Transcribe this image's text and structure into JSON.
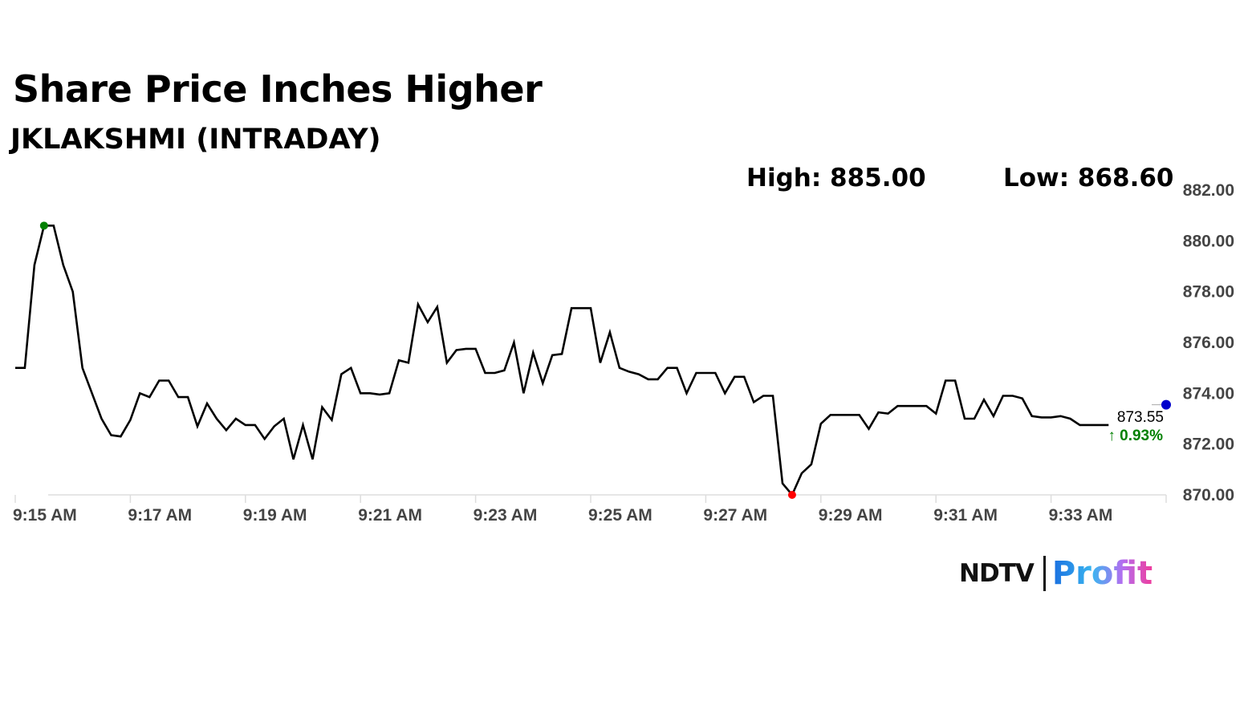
{
  "header": {
    "title": "Share Price Inches Higher",
    "subtitle": "JKLAKSHMI (INTRADAY)"
  },
  "stats": {
    "high": "High: 885.00",
    "low": "Low: 868.60"
  },
  "last": {
    "price": "873.55",
    "change": "↑ 0.93%",
    "value": 873.55,
    "time": "9:35:00"
  },
  "logo": {
    "ndtv": "NDTV",
    "profit": "Profit"
  },
  "colors": {
    "line": "#000000",
    "high_marker": "#008000",
    "low_marker": "#ff0000",
    "last_marker": "#0000cc",
    "change_up": "#008000",
    "axis_text": "#444444",
    "axis_line": "#dddddd"
  },
  "chart_data": {
    "type": "line",
    "title": "Share Price Inches Higher",
    "xlabel": "",
    "ylabel": "",
    "ylim": [
      870,
      882
    ],
    "xlim": [
      "9:15:00",
      "9:35:00"
    ],
    "y_ticks": [
      "870.00",
      "872.00",
      "874.00",
      "876.00",
      "878.00",
      "880.00",
      "882.00"
    ],
    "x_ticks": [
      "9:15 AM",
      "9:17 AM",
      "9:19 AM",
      "9:21 AM",
      "9:23 AM",
      "9:25 AM",
      "9:27 AM",
      "9:29 AM",
      "9:31 AM",
      "9:33 AM"
    ],
    "grid": false,
    "x": [
      "9:15:00",
      "9:15:10",
      "9:15:20",
      "9:15:30",
      "9:15:40",
      "9:15:50",
      "9:16:00",
      "9:16:10",
      "9:16:20",
      "9:16:30",
      "9:16:40",
      "9:16:50",
      "9:17:00",
      "9:17:10",
      "9:17:20",
      "9:17:30",
      "9:17:40",
      "9:17:50",
      "9:18:00",
      "9:18:10",
      "9:18:20",
      "9:18:30",
      "9:18:40",
      "9:18:50",
      "9:19:00",
      "9:19:10",
      "9:19:20",
      "9:19:30",
      "9:19:40",
      "9:19:50",
      "9:20:00",
      "9:20:10",
      "9:20:20",
      "9:20:30",
      "9:20:40",
      "9:20:50",
      "9:21:00",
      "9:21:10",
      "9:21:20",
      "9:21:30",
      "9:21:40",
      "9:21:50",
      "9:22:00",
      "9:22:10",
      "9:22:20",
      "9:22:30",
      "9:22:40",
      "9:22:50",
      "9:23:00",
      "9:23:10",
      "9:23:20",
      "9:23:30",
      "9:23:40",
      "9:23:50",
      "9:24:00",
      "9:24:10",
      "9:24:20",
      "9:24:30",
      "9:24:40",
      "9:24:50",
      "9:25:00",
      "9:25:10",
      "9:25:20",
      "9:25:30",
      "9:25:40",
      "9:25:50",
      "9:26:00",
      "9:26:10",
      "9:26:20",
      "9:26:30",
      "9:26:40",
      "9:26:50",
      "9:27:00",
      "9:27:10",
      "9:27:20",
      "9:27:30",
      "9:27:40",
      "9:27:50",
      "9:28:00",
      "9:28:10",
      "9:28:20",
      "9:28:30",
      "9:28:40",
      "9:28:50",
      "9:29:00",
      "9:29:10",
      "9:29:20",
      "9:29:30",
      "9:29:40",
      "9:29:50",
      "9:30:00",
      "9:30:10",
      "9:30:20",
      "9:30:30",
      "9:30:40",
      "9:30:50",
      "9:31:00",
      "9:31:10",
      "9:31:20",
      "9:31:30",
      "9:31:40",
      "9:31:50",
      "9:32:00",
      "9:32:10",
      "9:32:20",
      "9:32:30",
      "9:32:40",
      "9:32:50",
      "9:33:00",
      "9:33:10",
      "9:33:20",
      "9:33:30",
      "9:33:40",
      "9:33:50",
      "9:34:00"
    ],
    "series": [
      {
        "values": [
          875.0,
          875.0,
          879.05,
          880.6,
          880.6,
          879.05,
          878.0,
          875.0,
          874.0,
          873.0,
          872.35,
          872.3,
          872.95,
          874.0,
          873.85,
          874.5,
          874.5,
          873.85,
          873.85,
          872.7,
          873.6,
          873.0,
          872.55,
          873.0,
          872.75,
          872.75,
          872.2,
          872.7,
          873.0,
          871.4,
          872.75,
          871.4,
          873.45,
          872.95,
          874.75,
          875.0,
          874.0,
          874.0,
          873.95,
          874.0,
          875.3,
          875.2,
          877.5,
          876.8,
          877.4,
          875.2,
          875.7,
          875.75,
          875.75,
          874.8,
          874.8,
          874.9,
          876.0,
          874.0,
          875.6,
          874.4,
          875.5,
          875.55,
          877.35,
          877.35,
          877.35,
          875.2,
          876.4,
          875.0,
          874.85,
          874.75,
          874.55,
          874.55,
          875.0,
          875.0,
          874.0,
          874.8,
          874.8,
          874.8,
          874.0,
          874.65,
          874.65,
          873.65,
          873.9,
          873.9,
          870.45,
          870.0,
          870.85,
          871.2,
          872.8,
          873.15,
          873.15,
          873.15,
          873.15,
          872.6,
          873.25,
          873.2,
          873.5,
          873.5,
          873.5,
          873.5,
          873.2,
          874.5,
          874.5,
          873.0,
          873.0,
          873.75,
          873.1,
          873.9,
          873.9,
          873.8,
          873.1,
          873.05,
          873.05,
          873.1,
          873.0,
          872.75,
          872.75,
          872.75,
          872.75
        ]
      }
    ]
  }
}
